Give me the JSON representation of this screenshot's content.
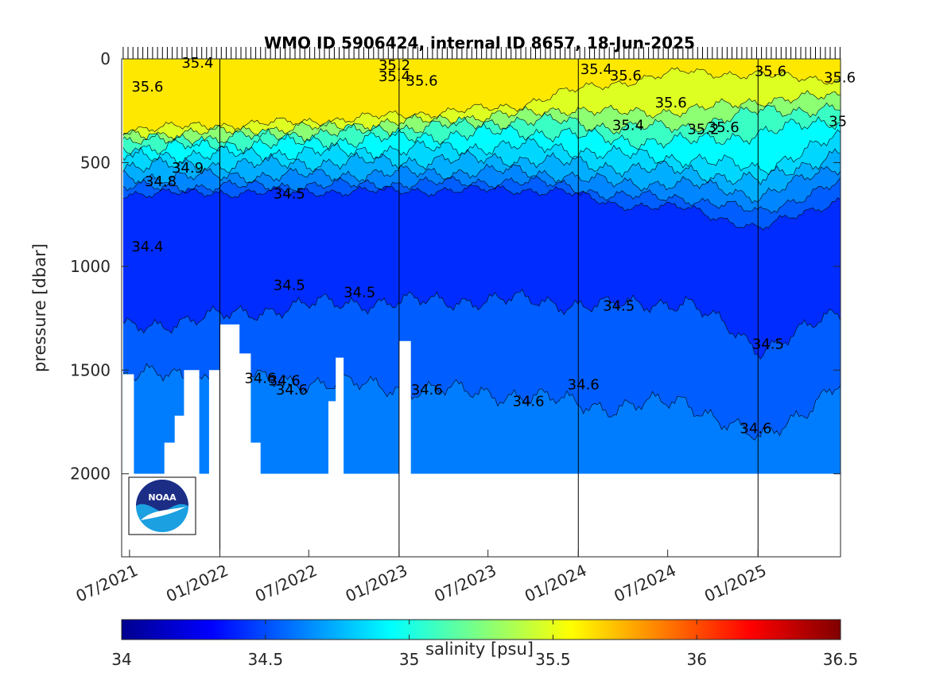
{
  "chart_data": {
    "type": "heatmap",
    "title": "WMO ID 5906424, internal ID 8657, 18-Jun-2025",
    "ylabel": "pressure [dbar]",
    "y_axis": {
      "range": [
        0,
        2400
      ],
      "reversed": true,
      "ticks": [
        0,
        500,
        1000,
        1500,
        2000
      ],
      "tick_labels": [
        "0",
        "500",
        "1000",
        "1500",
        "2000"
      ]
    },
    "x_axis": {
      "range": [
        "2021-06-15",
        "2025-06-18"
      ],
      "ticks": [
        "2021-07-01",
        "2022-01-01",
        "2022-07-01",
        "2023-01-01",
        "2023-07-01",
        "2024-01-01",
        "2024-07-01",
        "2025-01-01"
      ],
      "tick_labels": [
        "07/2021",
        "01/2022",
        "07/2022",
        "01/2023",
        "07/2023",
        "01/2024",
        "07/2024",
        "01/2025"
      ],
      "year_lines": [
        "2022-01-01",
        "2023-01-01",
        "2024-01-01",
        "2025-01-01"
      ]
    },
    "colorbar": {
      "label": "salinity [psu]",
      "range": [
        34,
        36.5
      ],
      "ticks": [
        34,
        34.5,
        35,
        35.5,
        36,
        36.5
      ],
      "tick_labels": [
        "34",
        "34.5",
        "35",
        "35.5",
        "36",
        "36.5"
      ],
      "colormap": "jet"
    },
    "contour_levels": [
      34.4,
      34.5,
      34.6,
      34.7,
      34.8,
      34.9,
      35.0,
      35.2,
      35.4,
      35.6
    ],
    "contour_labels": [
      {
        "text": "35.4",
        "date": "2021-10-15",
        "pressure": 20
      },
      {
        "text": "35.6",
        "date": "2021-07-05",
        "pressure": 135
      },
      {
        "text": "34.9",
        "date": "2021-09-25",
        "pressure": 525
      },
      {
        "text": "34.8",
        "date": "2021-08-01",
        "pressure": 590
      },
      {
        "text": "34.4",
        "date": "2021-07-05",
        "pressure": 905
      },
      {
        "text": "34.5",
        "date": "2022-04-20",
        "pressure": 650
      },
      {
        "text": "34.5",
        "date": "2022-04-20",
        "pressure": 1090
      },
      {
        "text": "34.5",
        "date": "2022-09-10",
        "pressure": 1125
      },
      {
        "text": "34.6",
        "date": "2022-02-20",
        "pressure": 1540
      },
      {
        "text": "34.6",
        "date": "2022-04-10",
        "pressure": 1550
      },
      {
        "text": "34.6",
        "date": "2022-04-25",
        "pressure": 1595
      },
      {
        "text": "35.2",
        "date": "2022-11-20",
        "pressure": 30
      },
      {
        "text": "35.4",
        "date": "2022-11-20",
        "pressure": 85
      },
      {
        "text": "35.6",
        "date": "2023-01-15",
        "pressure": 105
      },
      {
        "text": "34.6",
        "date": "2023-01-25",
        "pressure": 1595
      },
      {
        "text": "34.6",
        "date": "2023-08-20",
        "pressure": 1650
      },
      {
        "text": "34.6",
        "date": "2023-12-10",
        "pressure": 1570
      },
      {
        "text": "35.4",
        "date": "2024-01-05",
        "pressure": 50
      },
      {
        "text": "35.6",
        "date": "2024-03-05",
        "pressure": 80
      },
      {
        "text": "35.6",
        "date": "2024-06-05",
        "pressure": 210
      },
      {
        "text": "35.4",
        "date": "2024-03-10",
        "pressure": 320
      },
      {
        "text": "35.2",
        "date": "2024-08-10",
        "pressure": 340
      },
      {
        "text": "35.6",
        "date": "2024-09-20",
        "pressure": 330
      },
      {
        "text": "34.5",
        "date": "2024-02-20",
        "pressure": 1190
      },
      {
        "text": "34.6",
        "date": "2024-11-25",
        "pressure": 1780
      },
      {
        "text": "34.5",
        "date": "2024-12-20",
        "pressure": 1375
      },
      {
        "text": "35.6",
        "date": "2024-12-25",
        "pressure": 60
      },
      {
        "text": "35.6",
        "date": "2025-05-15",
        "pressure": 90
      },
      {
        "text": "35",
        "date": "2025-05-25",
        "pressure": 300
      }
    ],
    "profile_columns_sampled": [
      {
        "date": "2021-06-18",
        "max_pressure": 1520
      },
      {
        "date": "2021-07-10",
        "max_pressure": 2000
      },
      {
        "date": "2021-09-10",
        "max_pressure": 1850
      },
      {
        "date": "2021-10-01",
        "max_pressure": 1720
      },
      {
        "date": "2021-10-20",
        "max_pressure": 1500
      },
      {
        "date": "2021-11-20",
        "max_pressure": 2000
      },
      {
        "date": "2021-12-10",
        "max_pressure": 1500
      },
      {
        "date": "2022-01-01",
        "max_pressure": 1280
      },
      {
        "date": "2022-02-10",
        "max_pressure": 1420
      },
      {
        "date": "2022-03-05",
        "max_pressure": 1850
      },
      {
        "date": "2022-03-25",
        "max_pressure": 2000
      },
      {
        "date": "2022-08-10",
        "max_pressure": 1650
      },
      {
        "date": "2022-08-25",
        "max_pressure": 1440
      },
      {
        "date": "2022-09-10",
        "max_pressure": 2000
      },
      {
        "date": "2023-01-01",
        "max_pressure": 1360
      },
      {
        "date": "2023-01-25",
        "max_pressure": 2000
      },
      {
        "date": "2025-06-18",
        "max_pressure": 2000
      }
    ]
  },
  "logo": {
    "text": "NOAA",
    "colors": {
      "navy": "#1c2d86",
      "sky": "#1ba0e1"
    }
  }
}
